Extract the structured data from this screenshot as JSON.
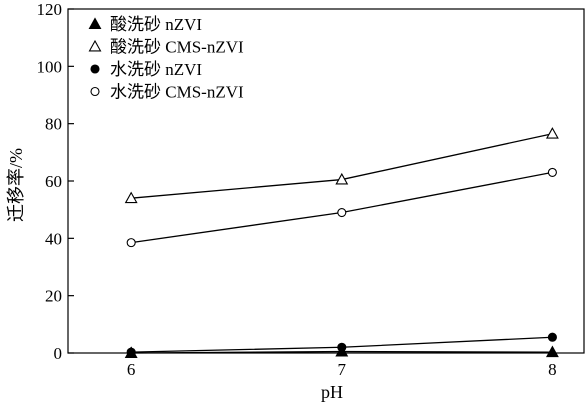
{
  "chart_data": {
    "type": "line",
    "title": "",
    "xlabel": "pH",
    "ylabel": "迁移率/%",
    "x": [
      6,
      7,
      8
    ],
    "xticks": [
      6,
      7,
      8
    ],
    "xlim": [
      5.7,
      8.15
    ],
    "ylim": [
      0,
      120
    ],
    "yticks": [
      0,
      20,
      40,
      60,
      80,
      100,
      120
    ],
    "grid": false,
    "legend_position": "top-left",
    "series": [
      {
        "name": "酸洗砂 nZVI",
        "marker": "filled-triangle",
        "values": [
          0,
          0.5,
          0.3
        ]
      },
      {
        "name": "酸洗砂 CMS-nZVI",
        "marker": "open-triangle",
        "values": [
          54,
          60.5,
          76.5
        ]
      },
      {
        "name": "水洗砂 nZVI",
        "marker": "filled-circle",
        "values": [
          0.3,
          2,
          5.5
        ]
      },
      {
        "name": "水洗砂 CMS-nZVI",
        "marker": "open-circle",
        "values": [
          38.5,
          49,
          63
        ]
      }
    ],
    "colors": {
      "line": "#000000",
      "background": "#ffffff"
    }
  }
}
